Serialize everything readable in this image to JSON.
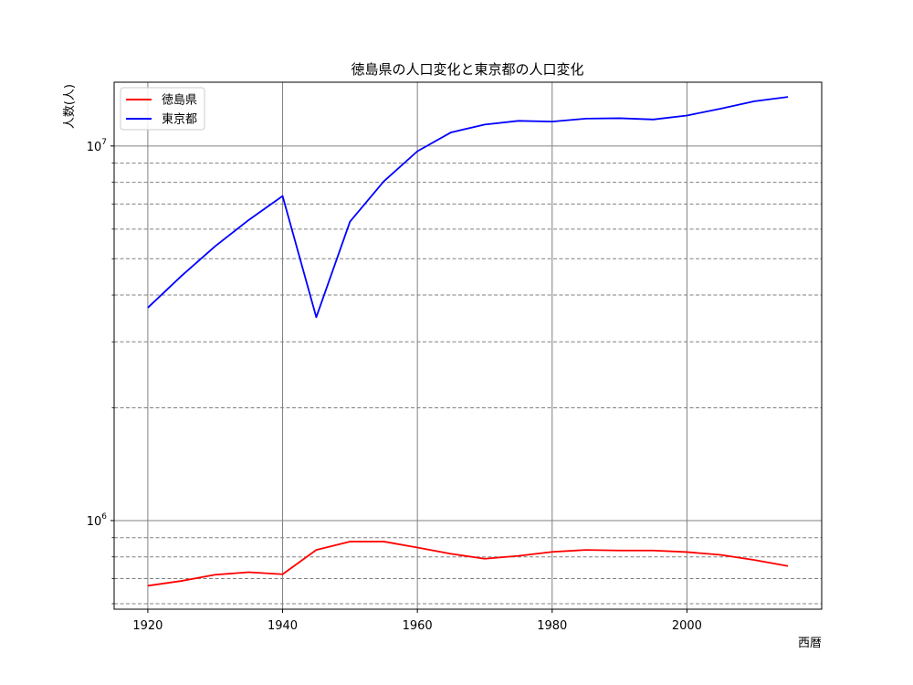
{
  "chart_data": {
    "type": "line",
    "title": "徳島県の人口変化と東京都の人口変化",
    "xlabel": "西暦",
    "ylabel": "人数(人)",
    "yscale": "log",
    "xlim": [
      1915,
      2020
    ],
    "ylim": [
      580000,
      14800000
    ],
    "x_ticks": [
      1920,
      1940,
      1960,
      1980,
      2000
    ],
    "y_major_ticks": [
      {
        "value": 1000000,
        "base": "10",
        "exp": "6"
      },
      {
        "value": 10000000,
        "base": "10",
        "exp": "7"
      }
    ],
    "y_minor_ticks": [
      600000,
      700000,
      800000,
      900000,
      2000000,
      3000000,
      4000000,
      5000000,
      6000000,
      7000000,
      8000000,
      9000000
    ],
    "grid": {
      "major": "solid",
      "minor": "dashed",
      "color": "#808080"
    },
    "legend": "top-left",
    "x": [
      1920,
      1925,
      1930,
      1935,
      1940,
      1945,
      1950,
      1955,
      1960,
      1965,
      1970,
      1975,
      1980,
      1985,
      1990,
      1995,
      2000,
      2005,
      2010,
      2015
    ],
    "series": [
      {
        "name": "徳島県",
        "color": "#ff0000",
        "values": [
          670000,
          690000,
          717000,
          728000,
          719000,
          835000,
          879000,
          879000,
          847000,
          815000,
          791000,
          805000,
          825000,
          835000,
          832000,
          832000,
          824000,
          810000,
          785000,
          756000
        ]
      },
      {
        "name": "東京都",
        "color": "#0000ff",
        "values": [
          3700000,
          4500000,
          5400000,
          6350000,
          7350000,
          3490000,
          6280000,
          8040000,
          9680000,
          10870000,
          11410000,
          11670000,
          11620000,
          11830000,
          11860000,
          11770000,
          12060000,
          12580000,
          13160000,
          13520000
        ]
      }
    ]
  }
}
